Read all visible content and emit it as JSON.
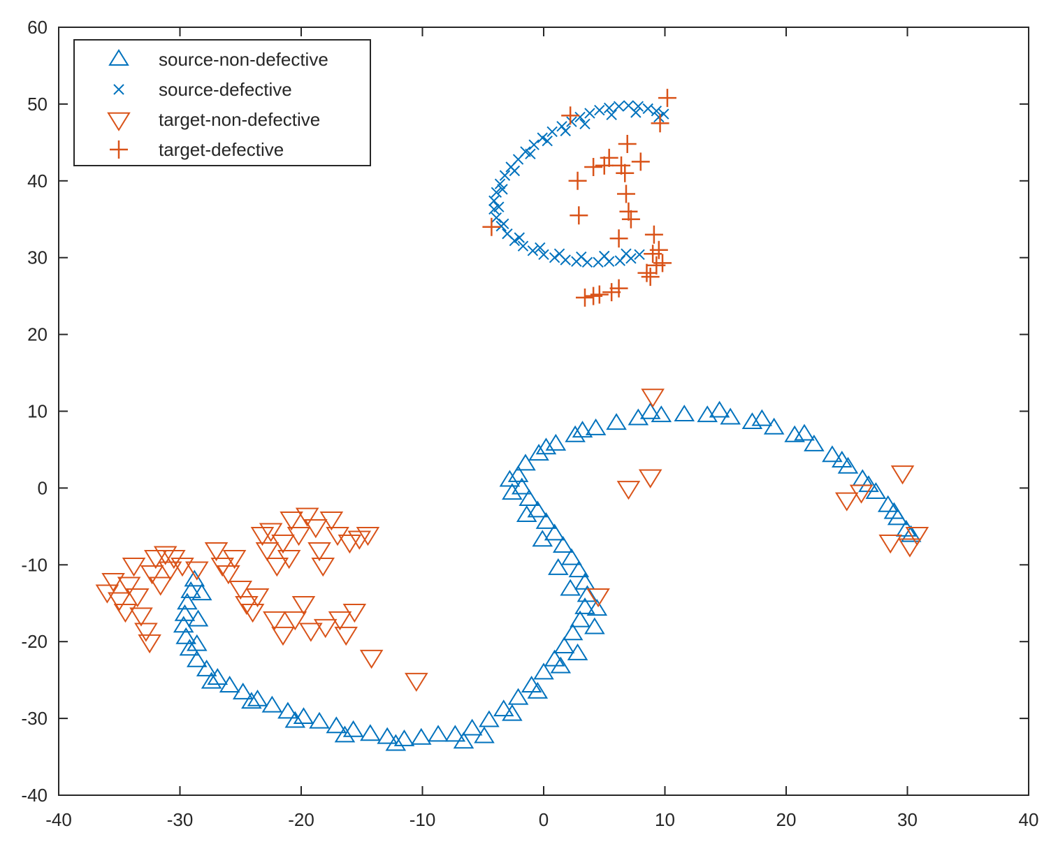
{
  "chart_data": {
    "type": "scatter",
    "xlim": [
      -40,
      40
    ],
    "ylim": [
      -40,
      60
    ],
    "xticks": [
      -40,
      -30,
      -20,
      -10,
      0,
      10,
      20,
      30,
      40
    ],
    "yticks": [
      -40,
      -30,
      -20,
      -10,
      0,
      10,
      20,
      30,
      40,
      50,
      60
    ],
    "grid": false,
    "legend_position": "top-left",
    "colors": {
      "source": "#0072BD",
      "target": "#D95319"
    },
    "series": [
      {
        "name": "source-non-defective",
        "marker": "triangle-up",
        "color": "#0072BD",
        "points": [
          [
            -28.8,
            -12
          ],
          [
            -29.1,
            -13.5
          ],
          [
            -29.4,
            -15
          ],
          [
            -29.6,
            -16.5
          ],
          [
            -29.7,
            -18
          ],
          [
            -29.5,
            -19.5
          ],
          [
            -29.2,
            -21
          ],
          [
            -28.6,
            -22.5
          ],
          [
            -27.8,
            -23.7
          ],
          [
            -26.9,
            -24.8
          ],
          [
            -25.9,
            -25.8
          ],
          [
            -24.8,
            -26.7
          ],
          [
            -23.6,
            -27.6
          ],
          [
            -22.4,
            -28.4
          ],
          [
            -21.1,
            -29.2
          ],
          [
            -19.8,
            -29.9
          ],
          [
            -18.5,
            -30.5
          ],
          [
            -17.1,
            -31.1
          ],
          [
            -15.7,
            -31.6
          ],
          [
            -14.3,
            -32.1
          ],
          [
            -12.9,
            -32.5
          ],
          [
            -11.5,
            -32.8
          ],
          [
            -10.1,
            -32.6
          ],
          [
            -8.7,
            -32.2
          ],
          [
            -7.3,
            -32.2
          ],
          [
            -5.9,
            -31.4
          ],
          [
            -4.5,
            -30.3
          ],
          [
            -3.3,
            -28.9
          ],
          [
            -2.1,
            -27.4
          ],
          [
            -1,
            -25.8
          ],
          [
            0,
            -24.1
          ],
          [
            0.9,
            -22.4
          ],
          [
            1.7,
            -20.7
          ],
          [
            2.4,
            -19
          ],
          [
            3,
            -17.3
          ],
          [
            3.4,
            -15.6
          ],
          [
            3.6,
            -14
          ],
          [
            3.4,
            -12.4
          ],
          [
            2.9,
            -10.8
          ],
          [
            2.3,
            -9.2
          ],
          [
            1.6,
            -7.6
          ],
          [
            0.9,
            -6
          ],
          [
            0.2,
            -4.5
          ],
          [
            -0.5,
            -3
          ],
          [
            -1.2,
            -1.5
          ],
          [
            -1.8,
            0
          ],
          [
            -2.1,
            1.6
          ],
          [
            -1.5,
            3.1
          ],
          [
            -0.4,
            4.4
          ],
          [
            1,
            5.7
          ],
          [
            2.6,
            6.8
          ],
          [
            4.3,
            7.7
          ],
          [
            6,
            8.4
          ],
          [
            7.8,
            9
          ],
          [
            9.7,
            9.4
          ],
          [
            11.6,
            9.5
          ],
          [
            13.5,
            9.4
          ],
          [
            15.4,
            9.1
          ],
          [
            17.2,
            8.5
          ],
          [
            19,
            7.8
          ],
          [
            20.7,
            6.8
          ],
          [
            22.3,
            5.6
          ],
          [
            23.8,
            4.2
          ],
          [
            25.1,
            2.7
          ],
          [
            26.3,
            1.1
          ],
          [
            27.4,
            -0.6
          ],
          [
            28.4,
            -2.3
          ],
          [
            29.2,
            -4
          ],
          [
            29.9,
            -5.5
          ],
          [
            -28.2,
            -13.8
          ],
          [
            -28.5,
            -17.2
          ],
          [
            -28.6,
            -20.4
          ],
          [
            -27.4,
            -25.3
          ],
          [
            -24.1,
            -27.9
          ],
          [
            -20.5,
            -30.4
          ],
          [
            -16.4,
            -32.3
          ],
          [
            -12.2,
            -33.4
          ],
          [
            -6.6,
            -33.1
          ],
          [
            -4.9,
            -32.4
          ],
          [
            -2.6,
            -29.5
          ],
          [
            -0.5,
            -26.6
          ],
          [
            1.4,
            -23.3
          ],
          [
            2.8,
            -21.6
          ],
          [
            4.2,
            -18.2
          ],
          [
            4.4,
            -15.8
          ],
          [
            2.2,
            -13.2
          ],
          [
            1.2,
            -10.5
          ],
          [
            -0.1,
            -6.8
          ],
          [
            -1.4,
            -3.6
          ],
          [
            -2.6,
            -0.7
          ],
          [
            -2.8,
            1
          ],
          [
            0.2,
            5.2
          ],
          [
            3.2,
            7.4
          ],
          [
            8.8,
            9.8
          ],
          [
            14.5,
            10
          ],
          [
            18,
            8.9
          ],
          [
            21.5,
            7
          ],
          [
            24.6,
            3.5
          ],
          [
            26.8,
            0.3
          ],
          [
            28.9,
            -3.2
          ],
          [
            30.3,
            -6.2
          ]
        ]
      },
      {
        "name": "source-defective",
        "marker": "x",
        "color": "#0072BD",
        "points": [
          [
            2.3,
            47.7
          ],
          [
            3,
            48.3
          ],
          [
            3.8,
            48.8
          ],
          [
            4.6,
            49.2
          ],
          [
            5.4,
            49.5
          ],
          [
            6.2,
            49.7
          ],
          [
            7,
            49.8
          ],
          [
            7.8,
            49.7
          ],
          [
            8.6,
            49.4
          ],
          [
            9.3,
            49.1
          ],
          [
            9.9,
            48.7
          ],
          [
            1.5,
            47.1
          ],
          [
            0.7,
            46.4
          ],
          [
            -0.1,
            45.6
          ],
          [
            -0.8,
            44.7
          ],
          [
            -1.5,
            43.8
          ],
          [
            -2.1,
            42.8
          ],
          [
            -2.7,
            41.8
          ],
          [
            -3.2,
            40.7
          ],
          [
            -3.6,
            39.6
          ],
          [
            -3.9,
            38.5
          ],
          [
            -4.1,
            37.4
          ],
          [
            -4.1,
            36.3
          ],
          [
            -3.9,
            35.2
          ],
          [
            -3.5,
            34.1
          ],
          [
            -3,
            33.1
          ],
          [
            -2.4,
            32.2
          ],
          [
            -1.7,
            31.5
          ],
          [
            -0.9,
            30.9
          ],
          [
            0,
            30.4
          ],
          [
            0.9,
            30
          ],
          [
            1.8,
            29.7
          ],
          [
            2.7,
            29.5
          ],
          [
            3.6,
            29.4
          ],
          [
            4.5,
            29.4
          ],
          [
            5.4,
            29.5
          ],
          [
            6.3,
            29.6
          ],
          [
            7.2,
            29.9
          ],
          [
            7.9,
            30.4
          ],
          [
            1.8,
            46.5
          ],
          [
            0.3,
            45.2
          ],
          [
            -1.1,
            43.5
          ],
          [
            -2.4,
            41.3
          ],
          [
            -3.4,
            38.9
          ],
          [
            -3.7,
            36.6
          ],
          [
            -3.3,
            34.4
          ],
          [
            -2,
            32.6
          ],
          [
            -0.3,
            31.3
          ],
          [
            1.3,
            30.5
          ],
          [
            3.1,
            30.1
          ],
          [
            5,
            30.2
          ],
          [
            6.8,
            30.5
          ],
          [
            3.4,
            47.4
          ],
          [
            5.6,
            48.6
          ],
          [
            7.6,
            48.9
          ],
          [
            9.5,
            48.3
          ]
        ]
      },
      {
        "name": "target-non-defective",
        "marker": "triangle-down",
        "color": "#D95319",
        "points": [
          [
            -36,
            -13.5
          ],
          [
            -35.5,
            -12
          ],
          [
            -35,
            -14.5
          ],
          [
            -34.5,
            -16
          ],
          [
            -34.2,
            -12.5
          ],
          [
            -33.8,
            -10
          ],
          [
            -33.5,
            -14
          ],
          [
            -33.2,
            -16.5
          ],
          [
            -32.8,
            -18.5
          ],
          [
            -32.5,
            -20
          ],
          [
            -32.3,
            -11
          ],
          [
            -32,
            -9
          ],
          [
            -31.6,
            -12.5
          ],
          [
            -31.2,
            -8.5
          ],
          [
            -30.8,
            -10.5
          ],
          [
            -30.5,
            -9
          ],
          [
            -29.8,
            -10
          ],
          [
            -28.6,
            -10.5
          ],
          [
            -27,
            -8
          ],
          [
            -26.5,
            -10
          ],
          [
            -26,
            -11
          ],
          [
            -25.5,
            -9
          ],
          [
            -25,
            -13
          ],
          [
            -24.5,
            -15
          ],
          [
            -24,
            -16
          ],
          [
            -23.6,
            -14
          ],
          [
            -23.2,
            -6
          ],
          [
            -22.8,
            -8
          ],
          [
            -22.5,
            -5.5
          ],
          [
            -22.2,
            -17
          ],
          [
            -22,
            -10
          ],
          [
            -21.5,
            -7
          ],
          [
            -21.5,
            -19
          ],
          [
            -21,
            -9
          ],
          [
            -20.8,
            -4
          ],
          [
            -20.5,
            -17
          ],
          [
            -20.2,
            -6
          ],
          [
            -19.8,
            -15
          ],
          [
            -19.5,
            -3.5
          ],
          [
            -19.2,
            -18.5
          ],
          [
            -18.8,
            -5
          ],
          [
            -18.5,
            -8
          ],
          [
            -18.2,
            -10
          ],
          [
            -18,
            -18
          ],
          [
            -17.5,
            -4
          ],
          [
            -17,
            -6
          ],
          [
            -16.8,
            -17
          ],
          [
            -16.3,
            -19
          ],
          [
            -16,
            -7
          ],
          [
            -15.6,
            -16
          ],
          [
            -15.2,
            -6.5
          ],
          [
            -14.5,
            -6
          ],
          [
            -14.2,
            -22
          ],
          [
            -10.5,
            -25
          ],
          [
            4.5,
            -14
          ],
          [
            7,
            0
          ],
          [
            8.8,
            1.5
          ],
          [
            9,
            12
          ],
          [
            25,
            -1.5
          ],
          [
            26.2,
            -0.5
          ],
          [
            28.6,
            -7
          ],
          [
            30.2,
            -7.5
          ],
          [
            30.8,
            -6
          ],
          [
            29.6,
            2
          ]
        ]
      },
      {
        "name": "target-defective",
        "marker": "plus",
        "color": "#D95319",
        "points": [
          [
            -4.3,
            34
          ],
          [
            2.2,
            48.5
          ],
          [
            2.8,
            40
          ],
          [
            2.9,
            35.5
          ],
          [
            3.4,
            24.8
          ],
          [
            4.1,
            25
          ],
          [
            4.6,
            25.2
          ],
          [
            4.1,
            41.8
          ],
          [
            5,
            42
          ],
          [
            5.4,
            43
          ],
          [
            5.6,
            25.5
          ],
          [
            6.2,
            26
          ],
          [
            6.4,
            42
          ],
          [
            6.7,
            41
          ],
          [
            6.9,
            44.8
          ],
          [
            6.2,
            32.5
          ],
          [
            6.8,
            38.3
          ],
          [
            7,
            36
          ],
          [
            7.2,
            35
          ],
          [
            8,
            42.5
          ],
          [
            8.8,
            27.5
          ],
          [
            9,
            30.5
          ],
          [
            9.1,
            33
          ],
          [
            9.3,
            29
          ],
          [
            9.6,
            47.5
          ],
          [
            9.8,
            29.3
          ],
          [
            10.2,
            50.8
          ],
          [
            8.5,
            28
          ],
          [
            9.5,
            31
          ]
        ]
      }
    ]
  }
}
